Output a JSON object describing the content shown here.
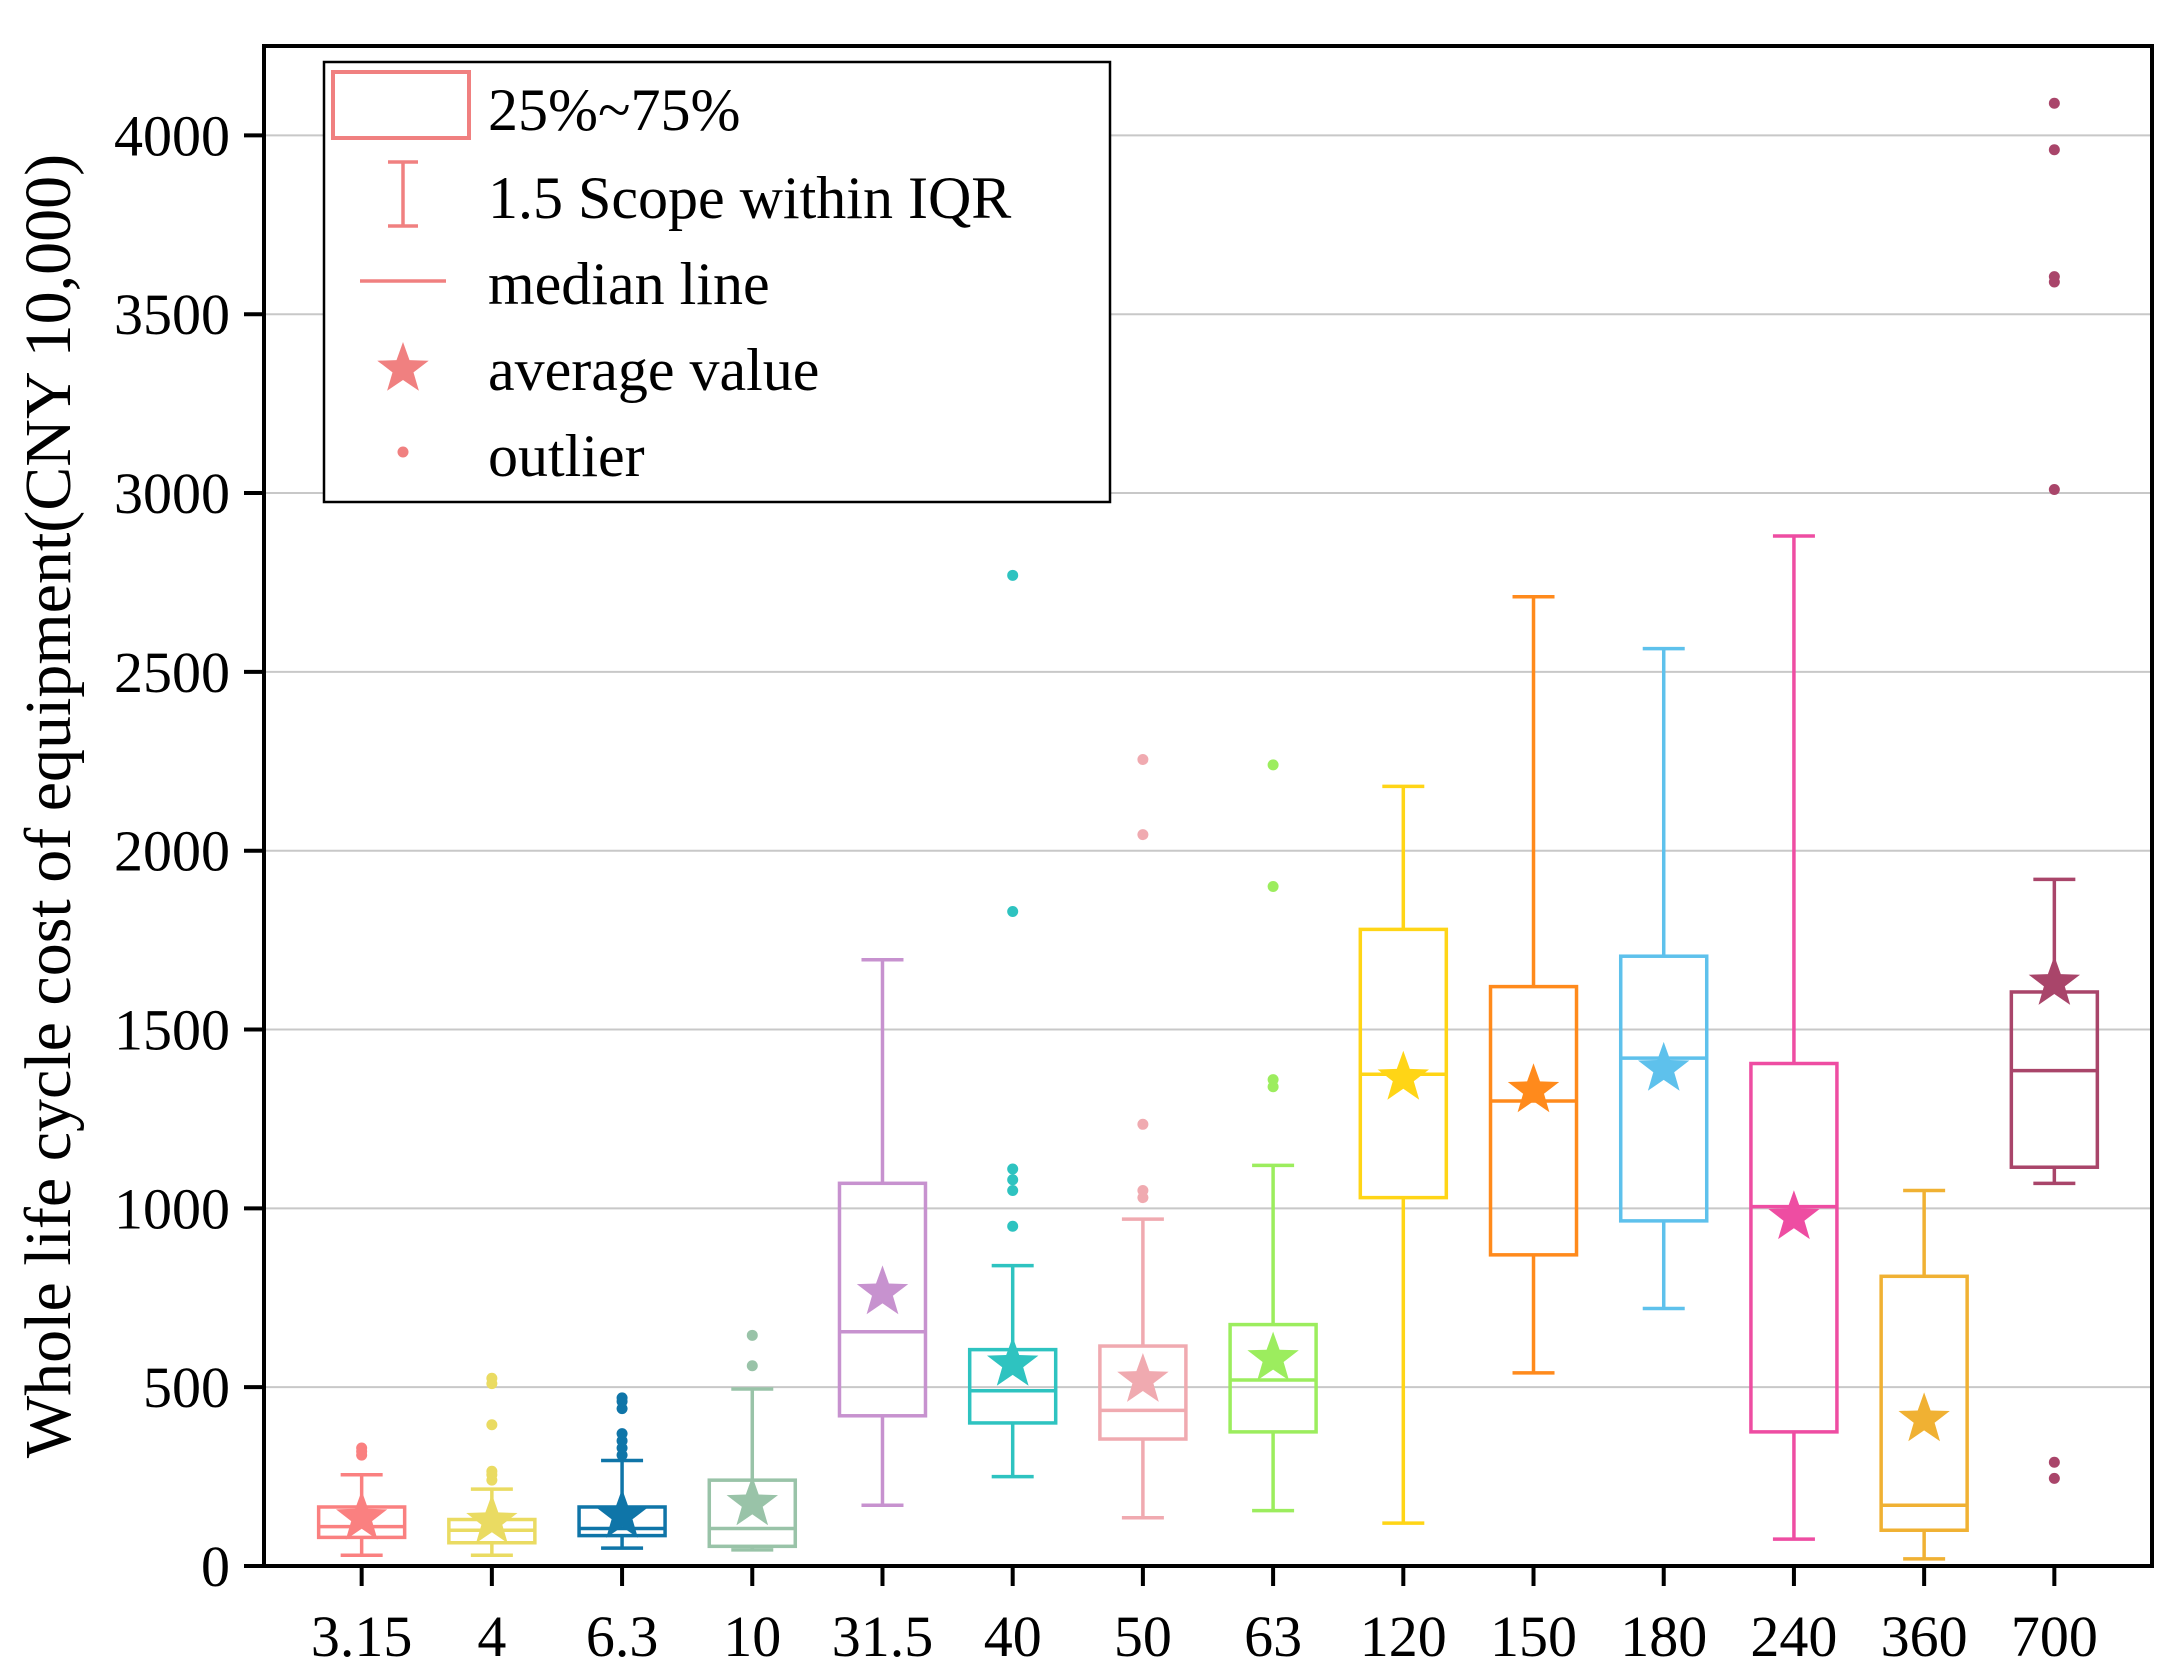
{
  "chart_data": {
    "type": "box",
    "title": "",
    "xlabel": "",
    "ylabel": "Whole life cycle cost of equipment(CNY 10,000)",
    "ylim": [
      0,
      4250
    ],
    "yticks": [
      0,
      500,
      1000,
      1500,
      2000,
      2500,
      3000,
      3500,
      4000
    ],
    "grid": true,
    "legend": {
      "position": "top-left",
      "entries": [
        "25%~75%",
        "1.5 Scope within IQR",
        "median line",
        "average value",
        "outlier"
      ],
      "color": "#f08080"
    },
    "categories": [
      "3.15",
      "4",
      "6.3",
      "10",
      "31.5",
      "40",
      "50",
      "63",
      "120",
      "150",
      "180",
      "240",
      "360",
      "700"
    ],
    "series": [
      {
        "category": "3.15",
        "color": "#fa8080",
        "whisker_low": 30,
        "q1": 80,
        "median": 110,
        "q3": 165,
        "whisker_high": 255,
        "mean": 135,
        "outliers": [
          310,
          320,
          330
        ]
      },
      {
        "category": "4",
        "color": "#eadb62",
        "whisker_low": 30,
        "q1": 65,
        "median": 100,
        "q3": 130,
        "whisker_high": 215,
        "mean": 125,
        "outliers": [
          240,
          255,
          265,
          395,
          510,
          525
        ]
      },
      {
        "category": "6.3",
        "color": "#0f75a8",
        "whisker_low": 50,
        "q1": 85,
        "median": 105,
        "q3": 165,
        "whisker_high": 295,
        "mean": 140,
        "outliers": [
          310,
          330,
          350,
          370,
          440,
          460,
          470
        ]
      },
      {
        "category": "10",
        "color": "#99c3a8",
        "whisker_low": 45,
        "q1": 55,
        "median": 105,
        "q3": 240,
        "whisker_high": 495,
        "mean": 175,
        "outliers": [
          560,
          645
        ]
      },
      {
        "category": "31.5",
        "color": "#c792cf",
        "whisker_low": 170,
        "q1": 420,
        "median": 655,
        "q3": 1070,
        "whisker_high": 1695,
        "mean": 765,
        "outliers": []
      },
      {
        "category": "40",
        "color": "#2ec3c0",
        "whisker_low": 250,
        "q1": 400,
        "median": 490,
        "q3": 605,
        "whisker_high": 840,
        "mean": 565,
        "outliers": [
          950,
          1050,
          1080,
          1110,
          1830,
          2770
        ]
      },
      {
        "category": "50",
        "color": "#f0aab0",
        "whisker_low": 135,
        "q1": 355,
        "median": 435,
        "q3": 615,
        "whisker_high": 970,
        "mean": 520,
        "outliers": [
          1030,
          1050,
          1235,
          2045,
          2255
        ]
      },
      {
        "category": "63",
        "color": "#9ced5e",
        "whisker_low": 155,
        "q1": 375,
        "median": 520,
        "q3": 675,
        "whisker_high": 1120,
        "mean": 580,
        "outliers": [
          1340,
          1360,
          1900,
          2240
        ]
      },
      {
        "category": "120",
        "color": "#ffd516",
        "whisker_low": 120,
        "q1": 1030,
        "median": 1375,
        "q3": 1780,
        "whisker_high": 2180,
        "mean": 1365,
        "outliers": []
      },
      {
        "category": "150",
        "color": "#ff8a1c",
        "whisker_low": 540,
        "q1": 870,
        "median": 1300,
        "q3": 1620,
        "whisker_high": 2710,
        "mean": 1330,
        "outliers": []
      },
      {
        "category": "180",
        "color": "#5ec1ec",
        "whisker_low": 720,
        "q1": 965,
        "median": 1420,
        "q3": 1705,
        "whisker_high": 2565,
        "mean": 1390,
        "outliers": []
      },
      {
        "category": "240",
        "color": "#ee4da2",
        "whisker_low": 75,
        "q1": 375,
        "median": 1005,
        "q3": 1405,
        "whisker_high": 2880,
        "mean": 975,
        "outliers": []
      },
      {
        "category": "360",
        "color": "#f0b133",
        "whisker_low": 20,
        "q1": 100,
        "median": 170,
        "q3": 810,
        "whisker_high": 1050,
        "mean": 410,
        "outliers": []
      },
      {
        "category": "700",
        "color": "#a9456a",
        "whisker_low": 1070,
        "q1": 1115,
        "median": 1385,
        "q3": 1605,
        "whisker_high": 1920,
        "mean": 1630,
        "outliers": [
          245,
          290,
          3010,
          3590,
          3605,
          3960,
          4090
        ]
      }
    ]
  }
}
